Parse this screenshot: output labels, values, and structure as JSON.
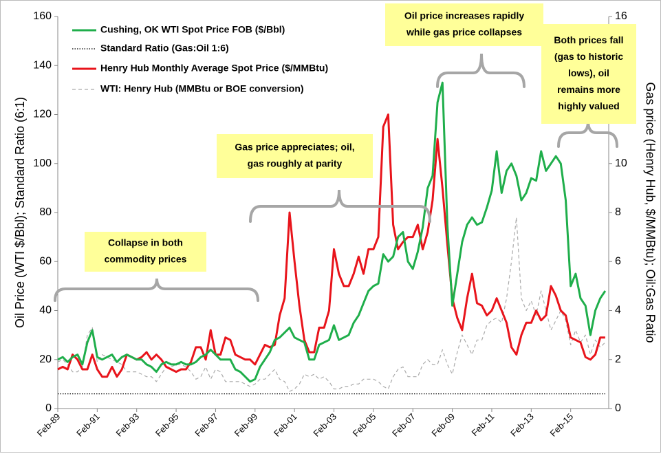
{
  "chart_data": {
    "type": "line",
    "y_label": "Oil Price (WTI $/Bbl); Standard Ratio (6:1)",
    "y2_label": "Gas price (Henry Hub, $/MMBtu); Oil:Gas Ratio",
    "ylim": [
      0,
      160
    ],
    "yticks": [
      0,
      20,
      40,
      60,
      80,
      100,
      120,
      140,
      160
    ],
    "y2lim": [
      0,
      16
    ],
    "y2ticks": [
      0,
      2,
      4,
      6,
      8,
      10,
      12,
      14,
      16
    ],
    "categories": [
      "Feb-89",
      null,
      null,
      null,
      null,
      null,
      null,
      null,
      "Feb-91",
      null,
      null,
      null,
      null,
      null,
      null,
      null,
      "Feb-93",
      null,
      null,
      null,
      null,
      null,
      null,
      null,
      "Feb-95",
      null,
      null,
      null,
      null,
      null,
      null,
      null,
      "Feb-97",
      null,
      null,
      null,
      null,
      null,
      null,
      null,
      "Feb-99",
      null,
      null,
      null,
      null,
      null,
      null,
      null,
      "Feb-01",
      null,
      null,
      null,
      null,
      null,
      null,
      null,
      "Feb-03",
      null,
      null,
      null,
      null,
      null,
      null,
      null,
      "Feb-05",
      null,
      null,
      null,
      null,
      null,
      null,
      null,
      "Feb-07",
      null,
      null,
      null,
      null,
      null,
      null,
      null,
      "Feb-09",
      null,
      null,
      null,
      null,
      null,
      null,
      null,
      "Feb-11",
      null,
      null,
      null,
      null,
      null,
      null,
      null,
      "Feb-13",
      null,
      null,
      null,
      null,
      null,
      null,
      null,
      "Feb-15",
      null,
      null,
      null,
      null,
      null,
      null,
      null
    ],
    "series": [
      {
        "name": "Cushing, OK WTI Spot Price FOB ($/Bbl)",
        "color": "#1fae4b",
        "line_style": "solid",
        "values": [
          20,
          21,
          19,
          21,
          22,
          18,
          27,
          32,
          21,
          20,
          21,
          22,
          19,
          21,
          22,
          21,
          20,
          20,
          18,
          17,
          15,
          18,
          19,
          18,
          18,
          19,
          18,
          18,
          19,
          21,
          22,
          24,
          22,
          20,
          20,
          20,
          16,
          15,
          13,
          11,
          12,
          17,
          20,
          23,
          28,
          29,
          31,
          33,
          29,
          28,
          27,
          20,
          20,
          26,
          27,
          28,
          34,
          28,
          29,
          30,
          35,
          38,
          43,
          48,
          50,
          51,
          63,
          60,
          62,
          70,
          72,
          60,
          57,
          64,
          74,
          90,
          95,
          125,
          133,
          75,
          42,
          55,
          68,
          75,
          78,
          75,
          76,
          82,
          89,
          105,
          88,
          97,
          100,
          95,
          85,
          88,
          94,
          93,
          105,
          97,
          100,
          103,
          100,
          85,
          50,
          55,
          45,
          42,
          30,
          40,
          45,
          48
        ]
      },
      {
        "name": "Standard Ratio (Gas:Oil 1:6)",
        "color": "#000000",
        "line_style": "dotted",
        "values": [
          6,
          6,
          6,
          6,
          6,
          6,
          6,
          6,
          6,
          6,
          6,
          6,
          6,
          6,
          6,
          6,
          6,
          6,
          6,
          6,
          6,
          6,
          6,
          6,
          6,
          6,
          6,
          6,
          6,
          6,
          6,
          6,
          6,
          6,
          6,
          6,
          6,
          6,
          6,
          6,
          6,
          6,
          6,
          6,
          6,
          6,
          6,
          6,
          6,
          6,
          6,
          6,
          6,
          6,
          6,
          6,
          6,
          6,
          6,
          6,
          6,
          6,
          6,
          6,
          6,
          6,
          6,
          6,
          6,
          6,
          6,
          6,
          6,
          6,
          6,
          6,
          6,
          6,
          6,
          6,
          6,
          6,
          6,
          6,
          6,
          6,
          6,
          6,
          6,
          6,
          6,
          6,
          6,
          6,
          6,
          6,
          6,
          6,
          6,
          6,
          6,
          6,
          6,
          6,
          6,
          6,
          6,
          6,
          6,
          6,
          6,
          6
        ]
      },
      {
        "name": "Henry Hub Monthly Average Spot Price ($/MMBtu)",
        "color": "#e8141b",
        "line_style": "solid",
        "axis": "y2",
        "values": [
          1.6,
          1.7,
          1.6,
          2.2,
          2.0,
          1.6,
          1.6,
          2.2,
          1.6,
          1.3,
          1.3,
          1.7,
          1.3,
          1.6,
          2.2,
          2.1,
          2.0,
          2.1,
          2.3,
          2.0,
          2.2,
          2.0,
          1.7,
          1.6,
          1.5,
          1.6,
          1.6,
          1.9,
          2.5,
          2.5,
          2.0,
          3.2,
          2.2,
          2.2,
          2.9,
          2.8,
          2.2,
          2.1,
          2.0,
          2.0,
          1.8,
          2.2,
          2.6,
          2.5,
          2.6,
          3.8,
          4.5,
          8.0,
          6.0,
          4.2,
          2.8,
          2.3,
          2.3,
          3.3,
          3.3,
          4.0,
          6.5,
          5.5,
          5.0,
          5.0,
          5.5,
          6.2,
          5.5,
          6.5,
          6.5,
          7.0,
          11.5,
          12.0,
          7.5,
          6.5,
          6.8,
          7.0,
          7.0,
          7.5,
          6.5,
          7.2,
          8.5,
          11.0,
          9.0,
          6.7,
          4.5,
          3.7,
          3.2,
          4.5,
          5.5,
          4.3,
          4.2,
          3.8,
          4.0,
          4.5,
          4.0,
          3.5,
          2.5,
          2.2,
          3.0,
          3.5,
          3.5,
          4.0,
          3.6,
          3.8,
          5.0,
          4.6,
          4.0,
          3.8,
          2.9,
          2.8,
          2.7,
          2.1,
          2.0,
          2.2,
          2.9,
          2.9
        ]
      },
      {
        "name": "WTI: Henry Hub (MMBtu or BOE conversion)",
        "color": "#aaaaaa",
        "line_style": "dashed",
        "values": [
          19,
          20,
          18,
          15,
          15,
          17,
          30,
          33,
          19,
          22,
          21,
          20,
          19,
          18,
          15,
          15,
          15,
          14,
          13,
          13,
          11,
          14,
          17,
          17,
          18,
          18,
          17,
          15,
          12,
          13,
          17,
          12,
          16,
          15,
          11,
          11,
          11,
          11,
          10,
          9,
          10,
          12,
          12,
          14,
          16,
          12,
          11,
          7,
          8,
          10,
          14,
          13,
          14,
          12,
          13,
          11,
          8,
          8,
          9,
          9,
          10,
          10,
          12,
          12,
          12,
          11,
          9,
          8,
          13,
          16,
          17,
          13,
          13,
          13,
          18,
          20,
          18,
          18,
          24,
          18,
          14,
          23,
          30,
          26,
          22,
          28,
          28,
          34,
          36,
          37,
          35,
          45,
          60,
          78,
          45,
          40,
          44,
          38,
          48,
          40,
          32,
          36,
          40,
          36,
          26,
          32,
          27,
          30,
          22,
          28,
          25,
          27
        ]
      }
    ],
    "annotations": [
      {
        "lines": [
          "Collapse in both",
          "commodity prices"
        ]
      },
      {
        "lines": [
          "Gas price appreciates; oil,",
          "gas roughly at parity"
        ]
      },
      {
        "lines": [
          "Oil price increases rapidly",
          "while gas price collapses"
        ]
      },
      {
        "lines": [
          "Both prices fall",
          "(gas to historic",
          "lows), oil",
          "remains more",
          "highly valued"
        ]
      }
    ]
  }
}
